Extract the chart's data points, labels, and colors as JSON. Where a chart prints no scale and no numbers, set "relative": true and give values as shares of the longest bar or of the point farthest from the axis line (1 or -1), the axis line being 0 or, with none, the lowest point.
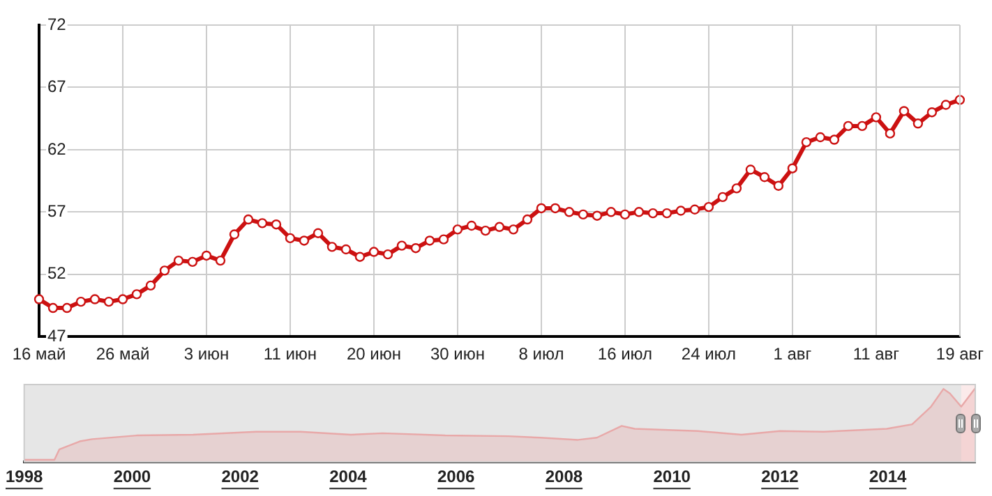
{
  "chart_data": [
    {
      "type": "line",
      "categories": [
        "16 май",
        null,
        null,
        null,
        null,
        null,
        "26 май",
        null,
        null,
        null,
        null,
        null,
        "3 июн",
        null,
        null,
        null,
        null,
        null,
        "11 июн",
        null,
        null,
        null,
        null,
        null,
        "20 июн",
        null,
        null,
        null,
        null,
        null,
        "30 июн",
        null,
        null,
        null,
        null,
        null,
        "8 июл",
        null,
        null,
        null,
        null,
        null,
        "16 июл",
        null,
        null,
        null,
        null,
        null,
        "24 июл",
        null,
        null,
        null,
        null,
        null,
        "1 авг",
        null,
        null,
        null,
        null,
        null,
        "11 авг",
        null,
        null,
        null,
        null,
        null,
        "19 авг"
      ],
      "values": [
        50.0,
        49.3,
        49.3,
        49.8,
        50.0,
        49.8,
        50.0,
        50.4,
        51.1,
        52.3,
        53.1,
        53.0,
        53.5,
        53.1,
        55.2,
        56.4,
        56.1,
        56.0,
        54.9,
        54.7,
        55.3,
        54.2,
        54.0,
        53.4,
        53.8,
        53.6,
        54.3,
        54.1,
        54.7,
        54.8,
        55.6,
        55.9,
        55.5,
        55.8,
        55.6,
        56.4,
        57.3,
        57.3,
        57.0,
        56.8,
        56.7,
        57.0,
        56.8,
        57.0,
        56.9,
        56.9,
        57.1,
        57.2,
        57.4,
        58.2,
        58.9,
        60.4,
        59.8,
        59.1,
        60.5,
        62.6,
        63.0,
        62.8,
        63.9,
        63.9,
        64.6,
        63.3,
        65.1,
        64.1,
        65.0,
        65.6,
        66.0
      ],
      "color": "#cc1111",
      "ylim": [
        47,
        72
      ],
      "yticks": [
        47,
        52,
        57,
        62,
        67,
        72
      ],
      "grid": true,
      "marker": "circle"
    },
    {
      "type": "area",
      "relative": true,
      "x": [
        1998.0,
        1998.56,
        1998.65,
        1998.79,
        1999.03,
        1999.26,
        2000.08,
        2001.13,
        2002.3,
        2003.12,
        2004.05,
        2004.64,
        2005.8,
        2006.97,
        2007.56,
        2008.26,
        2008.61,
        2009.07,
        2009.31,
        2010.48,
        2011.29,
        2012.0,
        2012.81,
        2013.98,
        2014.45,
        2014.8,
        2015.03,
        2015.15,
        2015.36,
        2015.62
      ],
      "values": [
        0.03,
        0.03,
        0.17,
        0.21,
        0.28,
        0.31,
        0.36,
        0.37,
        0.41,
        0.41,
        0.37,
        0.39,
        0.36,
        0.35,
        0.33,
        0.3,
        0.33,
        0.49,
        0.45,
        0.42,
        0.37,
        0.42,
        0.41,
        0.45,
        0.51,
        0.75,
        0.99,
        0.93,
        0.75,
        1
      ],
      "color": "#e8a8a8",
      "xlim": [
        1998,
        2015.62
      ],
      "xticks": [
        1998,
        2000,
        2002,
        2004,
        2006,
        2008,
        2010,
        2012,
        2014
      ],
      "bands": [
        {
          "axis": "x",
          "from": 2015.36,
          "to": 2015.62,
          "color": "#fbeaea"
        }
      ],
      "grid": false
    }
  ]
}
